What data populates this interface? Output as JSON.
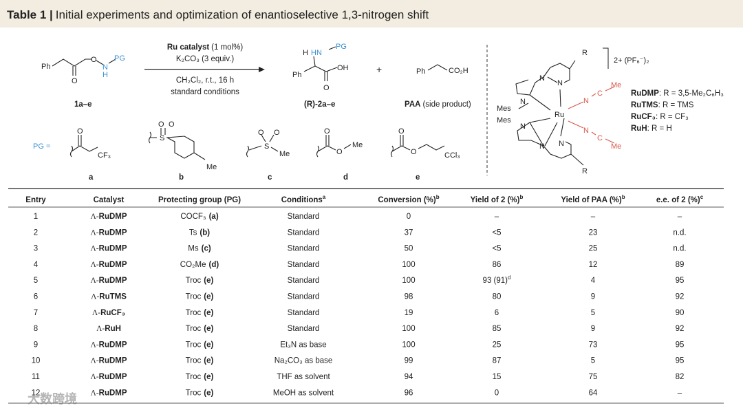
{
  "header": {
    "label": "Table 1 |",
    "title": "Initial experiments and optimization of enantioselective 1,3-nitrogen shift"
  },
  "scheme": {
    "reagents": {
      "catalyst": "Ru catalyst",
      "loading": "(1 mol%)",
      "base": "K₂CO₃ (3 equiv.)",
      "conditions": "CH₂Cl₂, r.t., 16 h",
      "note": "standard conditions"
    },
    "substrate": {
      "label": "1a–e",
      "atoms": [
        "Ph",
        "O",
        "O",
        "N",
        "H",
        "PG"
      ]
    },
    "product": {
      "label": "(R)-2a–e",
      "atoms": [
        "H",
        "HN",
        "PG",
        "Ph",
        "OH",
        "O"
      ]
    },
    "plus": "+",
    "side": {
      "label": "PAA",
      "note": "(side product)",
      "atoms": [
        "Ph",
        "CO₂H"
      ]
    },
    "pg": {
      "label": "PG =",
      "groups": [
        {
          "letter": "a",
          "atoms": [
            "O",
            "CF₃"
          ]
        },
        {
          "letter": "b",
          "atoms": [
            "O",
            "O",
            "S",
            "Me"
          ]
        },
        {
          "letter": "c",
          "atoms": [
            "O",
            "O",
            "S",
            "Me"
          ]
        },
        {
          "letter": "d",
          "atoms": [
            "O",
            "O",
            "Me"
          ]
        },
        {
          "letter": "e",
          "atoms": [
            "O",
            "O",
            "CCl₃"
          ]
        }
      ]
    },
    "complex": {
      "atoms": [
        "R",
        "N",
        "N",
        "N",
        "Mes",
        "Ru",
        "N",
        "C",
        "Me",
        "Mes",
        "N",
        "N",
        "N",
        "N",
        "C",
        "Me",
        "R"
      ],
      "charge": "2+ (PF₆⁻)₂",
      "legend": [
        {
          "name": "RuDMP",
          "def": ": R = 3,5-Me₂C₆H₃"
        },
        {
          "name": "RuTMS",
          "def": ": R = TMS"
        },
        {
          "name": "RuCF₃",
          "def": ": R = CF₃"
        },
        {
          "name": "RuH",
          "def": ": R = H"
        }
      ]
    }
  },
  "table": {
    "columns": [
      {
        "text": "Entry"
      },
      {
        "text": "Catalyst"
      },
      {
        "text": "Protecting group (PG)"
      },
      {
        "text": "Conditions",
        "note": "a"
      },
      {
        "text": "Conversion (%)",
        "note": "b"
      },
      {
        "text": "Yield of 2 (%)",
        "note": "b"
      },
      {
        "text": "Yield of PAA (%)",
        "note": "b"
      },
      {
        "text": "e.e. of 2 (%)",
        "note": "c"
      }
    ],
    "rows": [
      {
        "entry": 1,
        "prefix": "Λ-",
        "catalyst": "RuDMP",
        "pg": "COCF₃",
        "pg_letter": "(a)",
        "conditions": "Standard",
        "conversion": 0,
        "yield2": "–",
        "yield_paa": "–",
        "ee": "–"
      },
      {
        "entry": 2,
        "prefix": "Λ-",
        "catalyst": "RuDMP",
        "pg": "Ts",
        "pg_letter": "(b)",
        "conditions": "Standard",
        "conversion": 37,
        "yield2": "<5",
        "yield_paa": 23,
        "ee": "n.d."
      },
      {
        "entry": 3,
        "prefix": "Λ-",
        "catalyst": "RuDMP",
        "pg": "Ms",
        "pg_letter": "(c)",
        "conditions": "Standard",
        "conversion": 50,
        "yield2": "<5",
        "yield_paa": 25,
        "ee": "n.d."
      },
      {
        "entry": 4,
        "prefix": "Λ-",
        "catalyst": "RuDMP",
        "pg": "CO₂Me",
        "pg_letter": "(d)",
        "conditions": "Standard",
        "conversion": 100,
        "yield2": 86,
        "yield_paa": 12,
        "ee": 89
      },
      {
        "entry": 5,
        "prefix": "Λ-",
        "catalyst": "RuDMP",
        "pg": "Troc",
        "pg_letter": "(e)",
        "conditions": "Standard",
        "conversion": 100,
        "yield2": "93 (91)",
        "yield2_note": "d",
        "yield_paa": 4,
        "ee": 95
      },
      {
        "entry": 6,
        "prefix": "Λ-",
        "catalyst": "RuTMS",
        "pg": "Troc",
        "pg_letter": "(e)",
        "conditions": "Standard",
        "conversion": 98,
        "yield2": 80,
        "yield_paa": 9,
        "ee": 92
      },
      {
        "entry": 7,
        "prefix": "Λ-",
        "catalyst": "RuCF₃",
        "pg": "Troc",
        "pg_letter": "(e)",
        "conditions": "Standard",
        "conversion": 19,
        "yield2": 6,
        "yield_paa": 5,
        "ee": 90
      },
      {
        "entry": 8,
        "prefix": "Λ-",
        "catalyst": "RuH",
        "pg": "Troc",
        "pg_letter": "(e)",
        "conditions": "Standard",
        "conversion": 100,
        "yield2": 85,
        "yield_paa": 9,
        "ee": 92
      },
      {
        "entry": 9,
        "prefix": "Λ-",
        "catalyst": "RuDMP",
        "pg": "Troc",
        "pg_letter": "(e)",
        "conditions": "Et₃N as base",
        "conversion": 100,
        "yield2": 25,
        "yield_paa": 73,
        "ee": 95
      },
      {
        "entry": 10,
        "prefix": "Λ-",
        "catalyst": "RuDMP",
        "pg": "Troc",
        "pg_letter": "(e)",
        "conditions": "Na₂CO₃ as base",
        "conversion": 99,
        "yield2": 87,
        "yield_paa": 5,
        "ee": 95
      },
      {
        "entry": 11,
        "prefix": "Λ-",
        "catalyst": "RuDMP",
        "pg": "Troc",
        "pg_letter": "(e)",
        "conditions": "THF as solvent",
        "conversion": 94,
        "yield2": 15,
        "yield_paa": 75,
        "ee": 82
      },
      {
        "entry": 12,
        "prefix": "Λ-",
        "catalyst": "RuDMP",
        "pg": "Troc",
        "pg_letter": "(e)",
        "conditions": "MeOH as solvent",
        "conversion": 96,
        "yield2": 0,
        "yield_paa": 64,
        "ee": "–"
      }
    ]
  },
  "watermark": "大数跨境"
}
